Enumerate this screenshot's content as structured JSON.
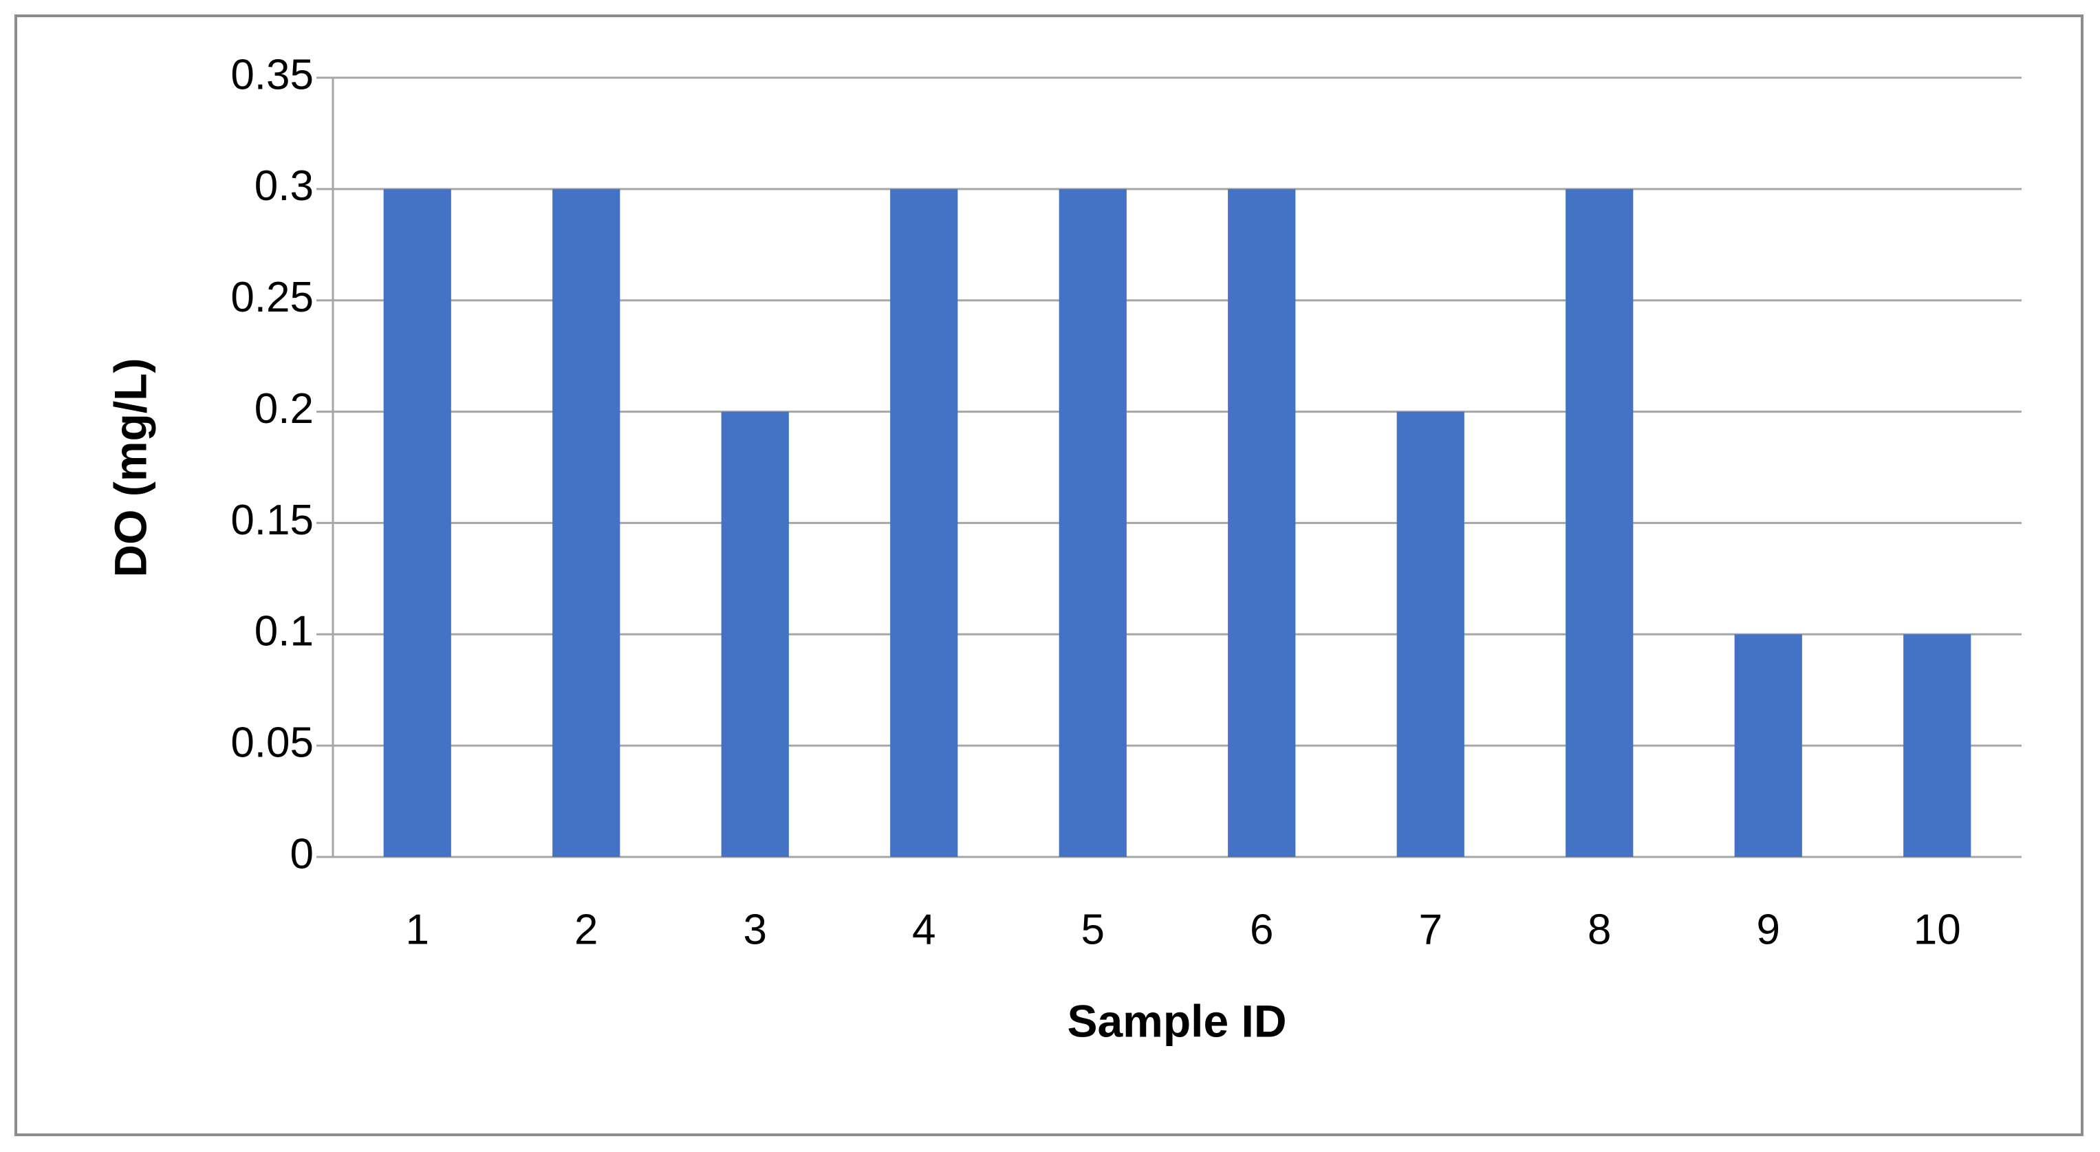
{
  "chart_data": {
    "type": "bar",
    "x_label": "Sample ID",
    "y_label": "DO (mg/L)",
    "categories": [
      "1",
      "2",
      "3",
      "4",
      "5",
      "6",
      "7",
      "8",
      "9",
      "10"
    ],
    "values": [
      0.3,
      0.3,
      0.2,
      0.3,
      0.3,
      0.3,
      0.2,
      0.3,
      0.1,
      0.1
    ],
    "color": "#4472c4",
    "ylim": [
      0,
      0.35
    ],
    "yticks": [
      0,
      0.05,
      0.1,
      0.15,
      0.2,
      0.25,
      0.3,
      0.35
    ],
    "grid": true
  }
}
